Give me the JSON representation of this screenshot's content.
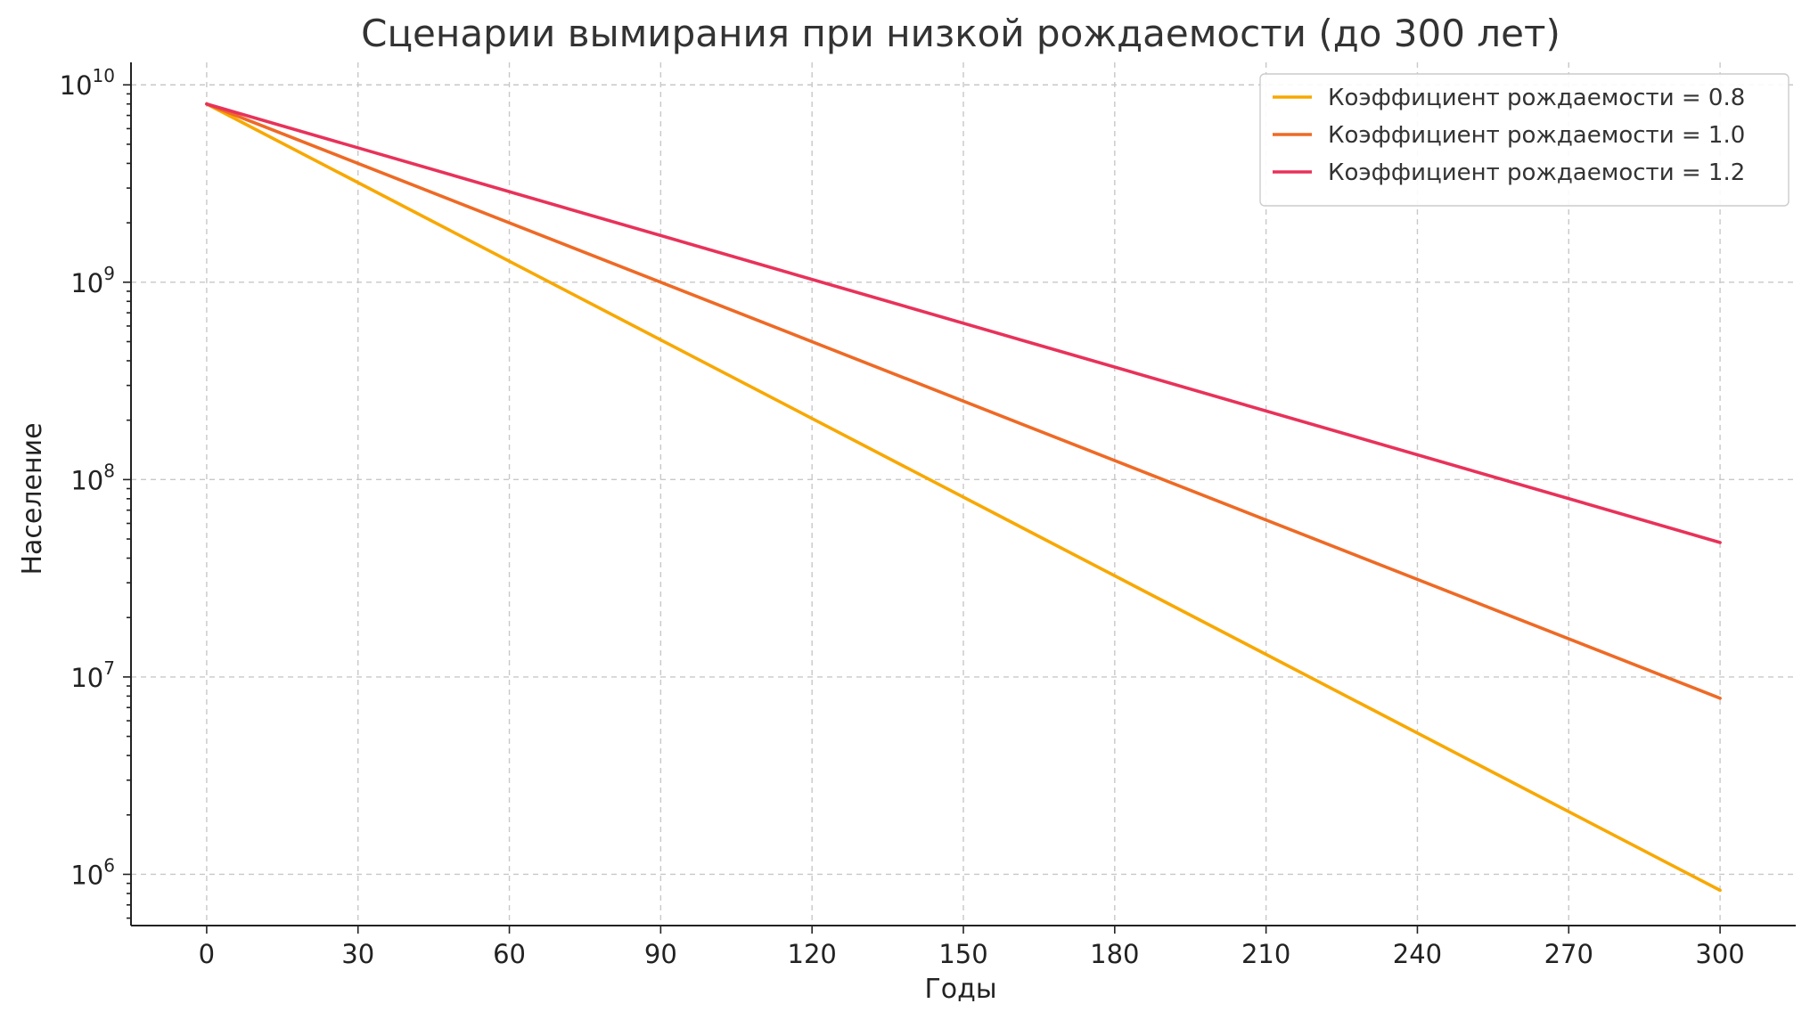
{
  "chart_data": {
    "type": "line",
    "title": "Сценарии вымирания при низкой рождаемости (до 300 лет)",
    "xlabel": "Годы",
    "ylabel": "Население",
    "x": [
      0,
      300
    ],
    "xlim": [
      -15,
      315
    ],
    "xticks": [
      0,
      30,
      60,
      90,
      120,
      150,
      180,
      210,
      240,
      270,
      300
    ],
    "ylim": [
      550000,
      13000000000
    ],
    "yscale": "log",
    "yticks": [
      {
        "value": 1000000,
        "base": "10",
        "exp": "6"
      },
      {
        "value": 10000000,
        "base": "10",
        "exp": "7"
      },
      {
        "value": 100000000,
        "base": "10",
        "exp": "8"
      },
      {
        "value": 1000000000,
        "base": "10",
        "exp": "9"
      },
      {
        "value": 10000000000,
        "base": "10",
        "exp": "10"
      }
    ],
    "grid": true,
    "legend_position": "top-right",
    "series": [
      {
        "name": "Коэффициент рождаемости = 0.8",
        "color": "#f8a800",
        "values": [
          8000000000,
          830000
        ]
      },
      {
        "name": "Коэффициент рождаемости = 1.0",
        "color": "#ee6a25",
        "values": [
          8000000000,
          7800000
        ]
      },
      {
        "name": "Коэффициент рождаемости = 1.2",
        "color": "#e8325a",
        "values": [
          8000000000,
          48000000
        ]
      }
    ]
  }
}
